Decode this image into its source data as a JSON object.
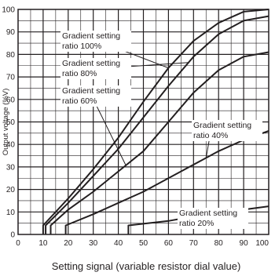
{
  "chart_data": {
    "type": "line",
    "title": "",
    "xlabel": "Setting signal (variable resistor dial value)",
    "ylabel": "Output voltage (%V)",
    "xlim": [
      0,
      100
    ],
    "ylim": [
      0,
      100
    ],
    "x_ticks": [
      "0",
      "10",
      "20",
      "30",
      "40",
      "50",
      "60",
      "70",
      "80",
      "90",
      "100"
    ],
    "y_ticks": [
      "0",
      "10",
      "20",
      "30",
      "40",
      "50",
      "60",
      "70",
      "80",
      "90",
      "100"
    ],
    "grid": true,
    "series": [
      {
        "name": "Gradient setting ratio 100%",
        "points": [
          [
            10,
            0
          ],
          [
            10,
            4
          ],
          [
            20,
            16
          ],
          [
            30,
            29
          ],
          [
            40,
            43
          ],
          [
            50,
            59
          ],
          [
            60,
            74
          ],
          [
            70,
            86
          ],
          [
            80,
            94
          ],
          [
            90,
            99
          ],
          [
            100,
            100
          ]
        ]
      },
      {
        "name": "Gradient setting ratio 80%",
        "points": [
          [
            11,
            0
          ],
          [
            11,
            4
          ],
          [
            20,
            14
          ],
          [
            30,
            26
          ],
          [
            40,
            38
          ],
          [
            50,
            52
          ],
          [
            60,
            66
          ],
          [
            70,
            79
          ],
          [
            80,
            89
          ],
          [
            90,
            95
          ],
          [
            100,
            97
          ]
        ]
      },
      {
        "name": "Gradient setting ratio 60%",
        "points": [
          [
            13,
            0
          ],
          [
            13,
            4
          ],
          [
            20,
            11
          ],
          [
            30,
            19
          ],
          [
            40,
            28
          ],
          [
            50,
            37
          ],
          [
            60,
            50
          ],
          [
            70,
            63
          ],
          [
            80,
            73
          ],
          [
            90,
            79
          ],
          [
            100,
            81
          ]
        ]
      },
      {
        "name": "Gradient setting ratio 40%",
        "points": [
          [
            19,
            0
          ],
          [
            19,
            4
          ],
          [
            30,
            9
          ],
          [
            40,
            14
          ],
          [
            50,
            19
          ],
          [
            60,
            25
          ],
          [
            70,
            31
          ],
          [
            80,
            37
          ],
          [
            90,
            42
          ],
          [
            100,
            46
          ]
        ]
      },
      {
        "name": "Gradient setting ratio 20%",
        "points": [
          [
            44,
            0
          ],
          [
            44,
            4
          ],
          [
            60,
            6
          ],
          [
            70,
            8
          ],
          [
            80,
            9.5
          ],
          [
            90,
            11
          ],
          [
            100,
            12.5
          ]
        ]
      }
    ],
    "annotations": [
      {
        "lines": [
          "Gradient setting",
          "ratio 100%"
        ],
        "series": 0
      },
      {
        "lines": [
          "Gradient setting",
          "ratio 80%"
        ],
        "series": 1
      },
      {
        "lines": [
          "Gradient setting",
          "ratio 60%"
        ],
        "series": 2
      },
      {
        "lines": [
          "Gradient setting",
          "ratio 40%"
        ],
        "series": 3
      },
      {
        "lines": [
          "Gradient setting",
          "ratio 20%"
        ],
        "series": 4
      }
    ],
    "colors": {
      "line": "#231f20",
      "grid": "#231f20",
      "axis": "#231f20"
    }
  }
}
